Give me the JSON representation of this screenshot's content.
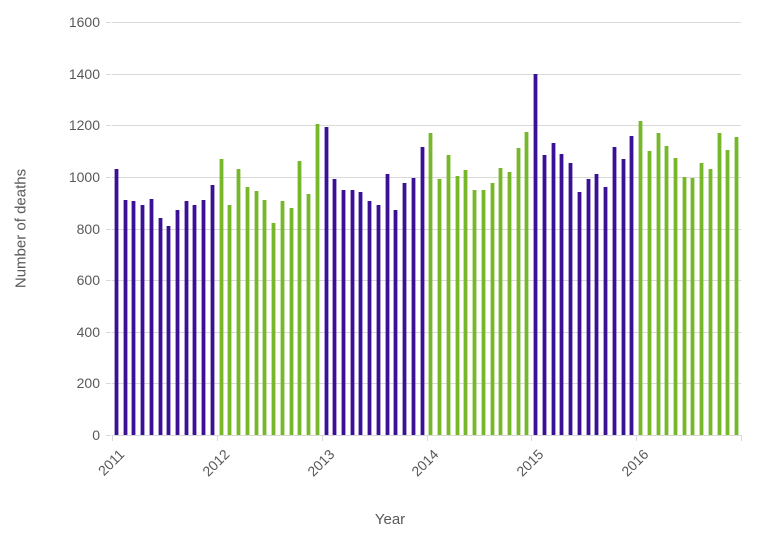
{
  "chart_data": {
    "type": "bar",
    "title": "",
    "xlabel": "Year",
    "ylabel": "Number of deaths",
    "ylim": [
      0,
      1600
    ],
    "yticks": [
      0,
      200,
      400,
      600,
      800,
      1000,
      1200,
      1400,
      1600
    ],
    "grid": "horizontal-light-gray",
    "legend_position": "none",
    "x_unit": "month (12 bars per year, unlabeled)",
    "colors": {
      "odd_year_bars": "#3A1094",
      "even_year_bars": "#76B82A",
      "axis_text": "#595959",
      "gridline": "#d9d9d9"
    },
    "years": [
      {
        "year": "2011",
        "color": "#3A1094",
        "values": [
          1030,
          910,
          905,
          890,
          915,
          840,
          810,
          870,
          905,
          890,
          910,
          970
        ]
      },
      {
        "year": "2012",
        "color": "#76B82A",
        "values": [
          1070,
          890,
          1030,
          960,
          945,
          910,
          820,
          905,
          880,
          1060,
          935,
          1205
        ]
      },
      {
        "year": "2013",
        "color": "#3A1094",
        "values": [
          1195,
          990,
          950,
          950,
          940,
          905,
          890,
          1010,
          870,
          975,
          995,
          1115
        ]
      },
      {
        "year": "2014",
        "color": "#76B82A",
        "values": [
          1170,
          990,
          1085,
          1005,
          1025,
          950,
          950,
          975,
          1035,
          1020,
          1110,
          1175
        ]
      },
      {
        "year": "2015",
        "color": "#3A1094",
        "values": [
          1400,
          1085,
          1130,
          1090,
          1055,
          940,
          990,
          1010,
          960,
          1115,
          1070,
          1160
        ]
      },
      {
        "year": "2016",
        "color": "#76B82A",
        "values": [
          1215,
          1100,
          1170,
          1120,
          1075,
          1000,
          995,
          1055,
          1030,
          1170,
          1105,
          1155
        ]
      }
    ]
  }
}
